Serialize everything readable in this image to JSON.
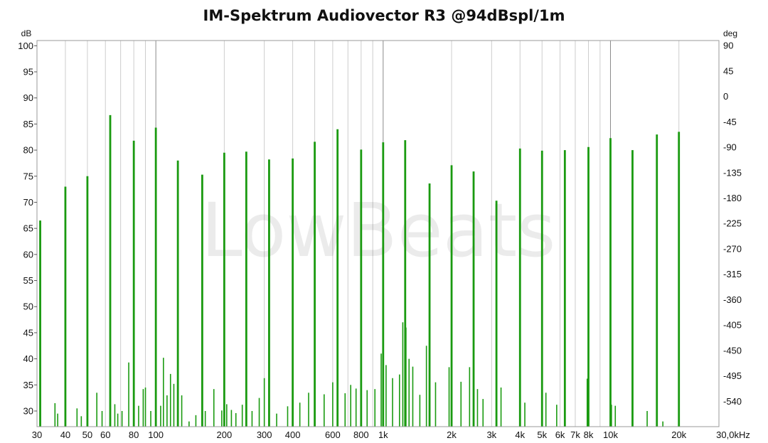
{
  "title": "IM-Spektrum Audiovector R3 @94dBspl/1m",
  "watermark": "LowBeats",
  "colors": {
    "trace": "#1a9a10",
    "grid_minor": "#cdcdcd",
    "grid_major": "#8a8a8a",
    "frame": "#9a9a9a"
  },
  "chart_data": {
    "type": "bar",
    "xscale": "log",
    "xlim": [
      30,
      30000
    ],
    "ylim": [
      27,
      101
    ],
    "y2lim": [
      -585,
      99
    ],
    "y_unit": "dB",
    "y2_unit": "deg",
    "yticks": [
      100,
      95,
      90,
      85,
      80,
      75,
      70,
      65,
      60,
      55,
      50,
      45,
      40,
      35,
      30
    ],
    "y2ticks": [
      90,
      45,
      0,
      -45,
      -90,
      -135,
      -180,
      -225,
      -270,
      -315,
      -360,
      -405,
      -450,
      -495,
      -540
    ],
    "xticks": [
      {
        "v": 30,
        "label": "30"
      },
      {
        "v": 40,
        "label": "40"
      },
      {
        "v": 50,
        "label": "50"
      },
      {
        "v": 60,
        "label": "60"
      },
      {
        "v": 80,
        "label": "80"
      },
      {
        "v": 100,
        "label": "100"
      },
      {
        "v": 200,
        "label": "200"
      },
      {
        "v": 300,
        "label": "300"
      },
      {
        "v": 400,
        "label": "400"
      },
      {
        "v": 600,
        "label": "600"
      },
      {
        "v": 800,
        "label": "800"
      },
      {
        "v": 1000,
        "label": "1k"
      },
      {
        "v": 2000,
        "label": "2k"
      },
      {
        "v": 3000,
        "label": "3k"
      },
      {
        "v": 4000,
        "label": "4k"
      },
      {
        "v": 5000,
        "label": "5k"
      },
      {
        "v": 6000,
        "label": "6k"
      },
      {
        "v": 7000,
        "label": "7k"
      },
      {
        "v": 8000,
        "label": "8k"
      },
      {
        "v": 10000,
        "label": "10k"
      },
      {
        "v": 20000,
        "label": "20k"
      },
      {
        "v": 30000,
        "label": "30,0kHz"
      }
    ],
    "grid": true,
    "series": [
      {
        "tones": [
          {
            "f": 31,
            "db": 66.5
          },
          {
            "f": 40,
            "db": 73
          },
          {
            "f": 50,
            "db": 75
          },
          {
            "f": 63,
            "db": 86.7
          },
          {
            "f": 80,
            "db": 81.8
          },
          {
            "f": 100,
            "db": 84.3
          },
          {
            "f": 125,
            "db": 78
          },
          {
            "f": 160,
            "db": 75.3
          },
          {
            "f": 200,
            "db": 79.5
          },
          {
            "f": 250,
            "db": 79.7
          },
          {
            "f": 315,
            "db": 78.2
          },
          {
            "f": 400,
            "db": 78.4
          },
          {
            "f": 500,
            "db": 81.6
          },
          {
            "f": 630,
            "db": 84
          },
          {
            "f": 800,
            "db": 80.1
          },
          {
            "f": 1000,
            "db": 81.5
          },
          {
            "f": 1250,
            "db": 81.9
          },
          {
            "f": 1600,
            "db": 73.6
          },
          {
            "f": 2000,
            "db": 77.1
          },
          {
            "f": 2500,
            "db": 75.9
          },
          {
            "f": 3150,
            "db": 70.3
          },
          {
            "f": 4000,
            "db": 80.3
          },
          {
            "f": 5000,
            "db": 79.9
          },
          {
            "f": 6300,
            "db": 80
          },
          {
            "f": 8000,
            "db": 80.6
          },
          {
            "f": 10000,
            "db": 82.3
          },
          {
            "f": 12500,
            "db": 80
          },
          {
            "f": 16000,
            "db": 83
          },
          {
            "f": 20000,
            "db": 83.5
          }
        ],
        "im_products": [
          {
            "f": 36,
            "db": 31.5
          },
          {
            "f": 37,
            "db": 29.5
          },
          {
            "f": 45,
            "db": 30.5
          },
          {
            "f": 47,
            "db": 29
          },
          {
            "f": 55,
            "db": 33.5
          },
          {
            "f": 58,
            "db": 30
          },
          {
            "f": 66,
            "db": 31.3
          },
          {
            "f": 68,
            "db": 29.5
          },
          {
            "f": 71,
            "db": 30
          },
          {
            "f": 76,
            "db": 39.3
          },
          {
            "f": 84,
            "db": 31
          },
          {
            "f": 88,
            "db": 34.2
          },
          {
            "f": 90,
            "db": 34.5
          },
          {
            "f": 95,
            "db": 30
          },
          {
            "f": 105,
            "db": 31
          },
          {
            "f": 108,
            "db": 40.2
          },
          {
            "f": 112,
            "db": 33
          },
          {
            "f": 116,
            "db": 37.1
          },
          {
            "f": 120,
            "db": 35.2
          },
          {
            "f": 130,
            "db": 33
          },
          {
            "f": 140,
            "db": 28
          },
          {
            "f": 150,
            "db": 29.2
          },
          {
            "f": 165,
            "db": 30
          },
          {
            "f": 180,
            "db": 34.2
          },
          {
            "f": 195,
            "db": 30.1
          },
          {
            "f": 205,
            "db": 31.3
          },
          {
            "f": 215,
            "db": 30.2
          },
          {
            "f": 225,
            "db": 29.6
          },
          {
            "f": 240,
            "db": 31.2
          },
          {
            "f": 265,
            "db": 30
          },
          {
            "f": 285,
            "db": 32.5
          },
          {
            "f": 300,
            "db": 36.3
          },
          {
            "f": 340,
            "db": 29.5
          },
          {
            "f": 380,
            "db": 30.9
          },
          {
            "f": 430,
            "db": 31.6
          },
          {
            "f": 470,
            "db": 33.5
          },
          {
            "f": 550,
            "db": 33.2
          },
          {
            "f": 600,
            "db": 35.5
          },
          {
            "f": 680,
            "db": 33.4
          },
          {
            "f": 720,
            "db": 35
          },
          {
            "f": 760,
            "db": 34.3
          },
          {
            "f": 850,
            "db": 34
          },
          {
            "f": 920,
            "db": 34.2
          },
          {
            "f": 980,
            "db": 41
          },
          {
            "f": 1030,
            "db": 38.8
          },
          {
            "f": 1100,
            "db": 36.3
          },
          {
            "f": 1180,
            "db": 37
          },
          {
            "f": 1220,
            "db": 47
          },
          {
            "f": 1260,
            "db": 46
          },
          {
            "f": 1300,
            "db": 40
          },
          {
            "f": 1350,
            "db": 38.5
          },
          {
            "f": 1450,
            "db": 33.1
          },
          {
            "f": 1550,
            "db": 42.5
          },
          {
            "f": 1700,
            "db": 35.5
          },
          {
            "f": 1950,
            "db": 38.4
          },
          {
            "f": 2200,
            "db": 35.6
          },
          {
            "f": 2400,
            "db": 38.4
          },
          {
            "f": 2600,
            "db": 34.2
          },
          {
            "f": 2750,
            "db": 32.3
          },
          {
            "f": 3300,
            "db": 34.5
          },
          {
            "f": 4200,
            "db": 31.6
          },
          {
            "f": 5200,
            "db": 33.5
          },
          {
            "f": 5800,
            "db": 31.2
          },
          {
            "f": 7900,
            "db": 36.2
          },
          {
            "f": 10100,
            "db": 31.2
          },
          {
            "f": 10500,
            "db": 31
          },
          {
            "f": 14500,
            "db": 30
          },
          {
            "f": 17000,
            "db": 28
          }
        ]
      }
    ]
  }
}
